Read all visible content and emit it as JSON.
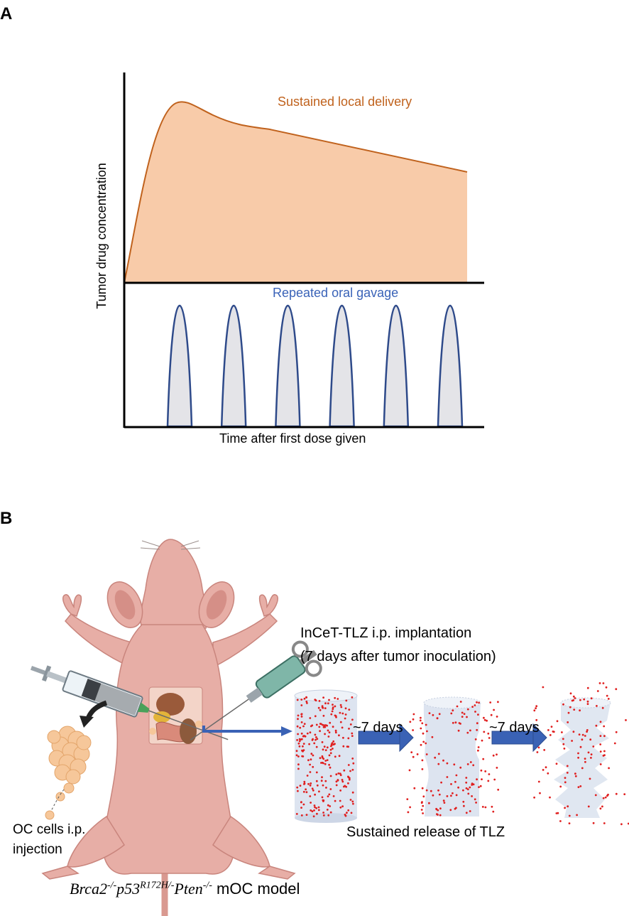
{
  "panel_a": {
    "letter": "A",
    "y_axis_label": "Tumor drug concentration",
    "x_axis_label": "Time after first dose given",
    "upper_curve_label": "Sustained local delivery",
    "lower_curve_label": "Repeated oral gavage",
    "dose_peaks": 6,
    "colors": {
      "sustained_fill": "#f8cba9",
      "sustained_line": "#c0621d",
      "sustained_text": "#c0621d",
      "oral_fill": "#e4e4e8",
      "oral_line": "#2e4a8a",
      "oral_text": "#3a63b8"
    }
  },
  "panel_b": {
    "letter": "B",
    "implant_label_line1": "InCeT-TLZ i.p. implantation",
    "implant_label_line2": "(7 days after tumor inoculation)",
    "interval_label_1": "~7 days",
    "interval_label_2": "~7 days",
    "release_label": "Sustained release of TLZ",
    "cells_label_line1": "OC cells i.p.",
    "cells_label_line2": "injection",
    "model_label_gene1": "Brca2",
    "model_label_sup1": "-/-",
    "model_label_gene2": "p53",
    "model_label_sup2": "R172H/-",
    "model_label_gene3": "Pten",
    "model_label_sup3": "-/-",
    "model_label_suffix": " mOC model",
    "icons": [
      "mouse-icon",
      "syringe-icon",
      "implant-syringe-icon",
      "cell-cluster-icon",
      "implant-icon",
      "arrow-icon"
    ],
    "colors": {
      "mouse": "#e7aea6",
      "mouse_dark": "#c9857d",
      "arrow": "#3a62b5",
      "implant": "#dde4f0",
      "drug_dots": "#e01f1f",
      "cells": "#f6c79a"
    }
  }
}
